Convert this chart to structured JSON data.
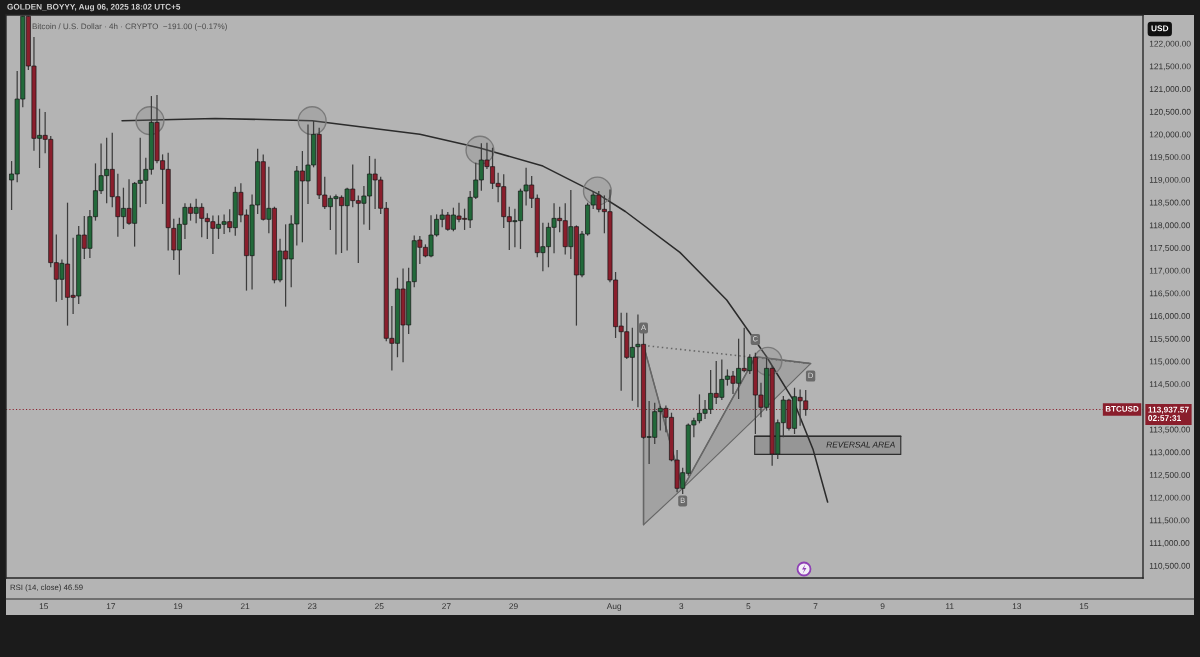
{
  "chart_data": {
    "type": "candlestick",
    "title": "Bitcoin / U.S. Dollar · 4h · CRYPTO  −191.00 (−0.17%)",
    "ylabel": "USD",
    "x": [
      "2025-07-14T01:00",
      "2025-07-14T05:00",
      "2025-07-14T09:00",
      "2025-07-14T13:00",
      "2025-07-14T17:00",
      "2025-07-14T21:00",
      "2025-07-15T01:00",
      "2025-07-15T05:00",
      "2025-07-15T09:00",
      "2025-07-15T13:00",
      "2025-07-15T17:00",
      "2025-07-15T21:00",
      "2025-07-16T01:00",
      "2025-07-16T05:00",
      "2025-07-16T09:00",
      "2025-07-16T13:00",
      "2025-07-16T17:00",
      "2025-07-16T21:00",
      "2025-07-17T01:00",
      "2025-07-17T05:00",
      "2025-07-17T09:00",
      "2025-07-17T13:00",
      "2025-07-17T17:00",
      "2025-07-17T21:00",
      "2025-07-18T01:00",
      "2025-07-18T05:00",
      "2025-07-18T09:00",
      "2025-07-18T13:00",
      "2025-07-18T17:00",
      "2025-07-18T21:00",
      "2025-07-19T01:00",
      "2025-07-19T05:00",
      "2025-07-19T09:00",
      "2025-07-19T13:00",
      "2025-07-19T17:00",
      "2025-07-19T21:00",
      "2025-07-20T01:00",
      "2025-07-20T05:00",
      "2025-07-20T09:00",
      "2025-07-20T13:00",
      "2025-07-20T17:00",
      "2025-07-20T21:00",
      "2025-07-21T01:00",
      "2025-07-21T05:00",
      "2025-07-21T09:00",
      "2025-07-21T13:00",
      "2025-07-21T17:00",
      "2025-07-21T21:00",
      "2025-07-22T01:00",
      "2025-07-22T05:00",
      "2025-07-22T09:00",
      "2025-07-22T13:00",
      "2025-07-22T17:00",
      "2025-07-22T21:00",
      "2025-07-23T01:00",
      "2025-07-23T05:00",
      "2025-07-23T09:00",
      "2025-07-23T13:00",
      "2025-07-23T17:00",
      "2025-07-23T21:00",
      "2025-07-24T01:00",
      "2025-07-24T05:00",
      "2025-07-24T09:00",
      "2025-07-24T13:00",
      "2025-07-24T17:00",
      "2025-07-24T21:00",
      "2025-07-25T01:00",
      "2025-07-25T05:00",
      "2025-07-25T09:00",
      "2025-07-25T13:00",
      "2025-07-25T17:00",
      "2025-07-25T21:00",
      "2025-07-26T01:00",
      "2025-07-26T05:00",
      "2025-07-26T09:00",
      "2025-07-26T13:00",
      "2025-07-26T17:00",
      "2025-07-26T21:00",
      "2025-07-27T01:00",
      "2025-07-27T05:00",
      "2025-07-27T09:00",
      "2025-07-27T13:00",
      "2025-07-27T17:00",
      "2025-07-27T21:00",
      "2025-07-28T01:00",
      "2025-07-28T05:00",
      "2025-07-28T09:00",
      "2025-07-28T13:00",
      "2025-07-28T17:00",
      "2025-07-28T21:00",
      "2025-07-29T01:00",
      "2025-07-29T05:00",
      "2025-07-29T09:00",
      "2025-07-29T13:00",
      "2025-07-29T17:00",
      "2025-07-29T21:00",
      "2025-07-30T01:00",
      "2025-07-30T05:00",
      "2025-07-30T09:00",
      "2025-07-30T13:00",
      "2025-07-30T17:00",
      "2025-07-30T21:00",
      "2025-07-31T01:00",
      "2025-07-31T05:00",
      "2025-07-31T09:00",
      "2025-07-31T13:00",
      "2025-07-31T17:00",
      "2025-07-31T21:00",
      "2025-08-01T01:00",
      "2025-08-01T05:00",
      "2025-08-01T09:00",
      "2025-08-01T13:00",
      "2025-08-01T17:00",
      "2025-08-01T21:00",
      "2025-08-02T01:00",
      "2025-08-02T05:00",
      "2025-08-02T09:00",
      "2025-08-02T13:00",
      "2025-08-02T17:00",
      "2025-08-02T21:00",
      "2025-08-03T01:00",
      "2025-08-03T05:00",
      "2025-08-03T09:00",
      "2025-08-03T13:00",
      "2025-08-03T17:00",
      "2025-08-03T21:00",
      "2025-08-04T01:00",
      "2025-08-04T05:00",
      "2025-08-04T09:00",
      "2025-08-04T13:00",
      "2025-08-04T17:00",
      "2025-08-04T21:00",
      "2025-08-05T01:00",
      "2025-08-05T05:00",
      "2025-08-05T09:00",
      "2025-08-05T13:00",
      "2025-08-05T17:00",
      "2025-08-05T21:00",
      "2025-08-06T01:00",
      "2025-08-06T05:00",
      "2025-08-06T09:00",
      "2025-08-06T13:00",
      "2025-08-06T17:00"
    ],
    "ohlc": [
      [
        118994,
        119397,
        118347,
        119126
      ],
      [
        119126,
        121380,
        118957,
        120777
      ],
      [
        120777,
        122600,
        120609,
        122600
      ],
      [
        122600,
        122600,
        121430,
        121504
      ],
      [
        121504,
        122128,
        119654,
        119911
      ],
      [
        119911,
        120550,
        119272,
        119977
      ],
      [
        119977,
        120476,
        119595,
        119889
      ],
      [
        119889,
        119948,
        117085,
        117173
      ],
      [
        117173,
        117782,
        116328,
        116806
      ],
      [
        116806,
        117231,
        116365,
        117158
      ],
      [
        117143,
        118480,
        115800,
        116409
      ],
      [
        116453,
        117708,
        116057,
        116409
      ],
      [
        116438,
        117966,
        116277,
        117782
      ],
      [
        117782,
        118186,
        117268,
        117488
      ],
      [
        117488,
        118318,
        117290,
        118186
      ],
      [
        118186,
        119346,
        118112,
        118758
      ],
      [
        118758,
        119786,
        118700,
        119089
      ],
      [
        119089,
        119911,
        118494,
        119228
      ],
      [
        119228,
        120022,
        118406,
        118626
      ],
      [
        118626,
        119118,
        117760,
        118186
      ],
      [
        118186,
        118810,
        117929,
        118369
      ],
      [
        118369,
        118994,
        118024,
        118039
      ],
      [
        118039,
        118935,
        117540,
        118920
      ],
      [
        118920,
        119911,
        118406,
        118986
      ],
      [
        118986,
        119471,
        118480,
        119228
      ],
      [
        119228,
        120829,
        119126,
        120263
      ],
      [
        120263,
        120851,
        119375,
        119419
      ],
      [
        119419,
        119544,
        118480,
        119228
      ],
      [
        119228,
        119581,
        117452,
        117943
      ],
      [
        117929,
        118127,
        117246,
        117452
      ],
      [
        117452,
        118149,
        116923,
        118017
      ],
      [
        118017,
        118465,
        117708,
        118391
      ],
      [
        118391,
        118465,
        118112,
        118259
      ],
      [
        118259,
        118568,
        118054,
        118391
      ],
      [
        118391,
        118465,
        117745,
        118149
      ],
      [
        118149,
        118245,
        117708,
        118076
      ],
      [
        118076,
        118200,
        117378,
        117929
      ],
      [
        117929,
        118201,
        117709,
        118017
      ],
      [
        118017,
        118222,
        117819,
        118076
      ],
      [
        118076,
        118333,
        117856,
        117944
      ],
      [
        117944,
        118832,
        117782,
        118722
      ],
      [
        118722,
        118906,
        118076,
        118223
      ],
      [
        118223,
        118333,
        116571,
        117327
      ],
      [
        117327,
        118663,
        116593,
        118443
      ],
      [
        118443,
        119669,
        118260,
        119397
      ],
      [
        119397,
        119544,
        118113,
        118127
      ],
      [
        118127,
        119273,
        117834,
        118370
      ],
      [
        118370,
        118392,
        116732,
        116791
      ],
      [
        116791,
        117687,
        116754,
        117430
      ],
      [
        117430,
        118003,
        116218,
        117254
      ],
      [
        117254,
        118201,
        116644,
        118025
      ],
      [
        118025,
        119287,
        117562,
        119192
      ],
      [
        119192,
        119618,
        117635,
        118972
      ],
      [
        118972,
        120205,
        118480,
        119324
      ],
      [
        119324,
        120279,
        119287,
        119999
      ],
      [
        119999,
        120132,
        118590,
        118663
      ],
      [
        118663,
        119052,
        118370,
        118406
      ],
      [
        118406,
        118641,
        117907,
        118590
      ],
      [
        118583,
        118663,
        117364,
        118627
      ],
      [
        118612,
        118641,
        117400,
        118428
      ],
      [
        118428,
        118810,
        117452,
        118795
      ],
      [
        118795,
        119324,
        118406,
        118539
      ],
      [
        118539,
        118641,
        117180,
        118480
      ],
      [
        118480,
        118847,
        118025,
        118641
      ],
      [
        118641,
        119508,
        117907,
        119126
      ],
      [
        119126,
        119449,
        118370,
        118994
      ],
      [
        118994,
        119052,
        118260,
        118370
      ],
      [
        118370,
        118494,
        115455,
        115506
      ],
      [
        115506,
        116204,
        114809,
        115396
      ],
      [
        115396,
        116828,
        115103,
        116593
      ],
      [
        116593,
        117033,
        114992,
        115800
      ],
      [
        115800,
        117048,
        115616,
        116754
      ],
      [
        116754,
        117760,
        116644,
        117657
      ],
      [
        117672,
        117745,
        117158,
        117511
      ],
      [
        117511,
        117562,
        117305,
        117320
      ],
      [
        117320,
        118201,
        117305,
        117782
      ],
      [
        117782,
        118223,
        117760,
        118127
      ],
      [
        118127,
        118333,
        117966,
        118223
      ],
      [
        118223,
        118274,
        117892,
        117907
      ],
      [
        117907,
        118370,
        117878,
        118223
      ],
      [
        118201,
        118480,
        118076,
        118127
      ],
      [
        118149,
        118348,
        117907,
        118127
      ],
      [
        118113,
        118737,
        117951,
        118612
      ],
      [
        118612,
        119361,
        118590,
        118994
      ],
      [
        118994,
        119787,
        118773,
        119434
      ],
      [
        119434,
        119801,
        119251,
        119288
      ],
      [
        119288,
        119691,
        118810,
        118920
      ],
      [
        118920,
        119141,
        118517,
        118847
      ],
      [
        118847,
        119104,
        117951,
        118186
      ],
      [
        118186,
        118392,
        117467,
        118076
      ],
      [
        118076,
        118348,
        117525,
        118098
      ],
      [
        118098,
        118788,
        117489,
        118751
      ],
      [
        118751,
        119251,
        118443,
        118884
      ],
      [
        118884,
        119067,
        118392,
        118590
      ],
      [
        118590,
        118663,
        117305,
        117393
      ],
      [
        117393,
        118039,
        116997,
        117525
      ],
      [
        117525,
        118039,
        117085,
        117951
      ],
      [
        117951,
        118465,
        117393,
        118149
      ],
      [
        118149,
        118392,
        117856,
        118098
      ],
      [
        118098,
        118465,
        117364,
        117525
      ],
      [
        117525,
        118759,
        117268,
        117966
      ],
      [
        117966,
        117980,
        115800,
        116901
      ],
      [
        116901,
        117856,
        116865,
        117804
      ],
      [
        117804,
        118480,
        117782,
        118443
      ],
      [
        118443,
        118737,
        118370,
        118663
      ],
      [
        118663,
        118737,
        118296,
        118348
      ],
      [
        118348,
        118641,
        117834,
        118296
      ],
      [
        118296,
        118773,
        116754,
        116791
      ],
      [
        116791,
        116953,
        115528,
        115763
      ],
      [
        115777,
        116056,
        114368,
        115652
      ],
      [
        115652,
        116056,
        115065,
        115087
      ],
      [
        115087,
        115726,
        114147,
        115307
      ],
      [
        115322,
        116020,
        114000,
        115374
      ],
      [
        115374,
        115616,
        113303,
        113325
      ],
      [
        113325,
        114111,
        112752,
        113340
      ],
      [
        113325,
        114074,
        113193,
        113891
      ],
      [
        113891,
        114000,
        113487,
        113964
      ],
      [
        113964,
        114015,
        113450,
        113766
      ],
      [
        113766,
        113854,
        112811,
        112826
      ],
      [
        112826,
        113032,
        112129,
        112202
      ],
      [
        112202,
        112642,
        112092,
        112547
      ],
      [
        112532,
        113619,
        112495,
        113597
      ],
      [
        113597,
        113744,
        113340,
        113692
      ],
      [
        113692,
        114258,
        113648,
        113854
      ],
      [
        113854,
        114133,
        113744,
        113942
      ],
      [
        113942,
        114793,
        113854,
        114294
      ],
      [
        114294,
        114992,
        114074,
        114206
      ],
      [
        114206,
        115028,
        114162,
        114602
      ],
      [
        114602,
        114808,
        114478,
        114676
      ],
      [
        114676,
        114771,
        114294,
        114515
      ],
      [
        114515,
        115484,
        114184,
        114845
      ],
      [
        114845,
        115726,
        114771,
        114794
      ],
      [
        114794,
        115139,
        114735,
        115087
      ],
      [
        115087,
        115175,
        113413,
        114257
      ],
      [
        114257,
        114515,
        113780,
        113986
      ],
      [
        113986,
        115065,
        113927,
        114845
      ],
      [
        114845,
        114882,
        112716,
        112958
      ],
      [
        112958,
        113707,
        112863,
        113648
      ],
      [
        113648,
        114221,
        113340,
        114147
      ],
      [
        114147,
        114162,
        113487,
        113523
      ],
      [
        113523,
        114404,
        113413,
        114221
      ],
      [
        114206,
        114368,
        113597,
        114129
      ],
      [
        114129,
        114353,
        113817,
        113937.57
      ]
    ],
    "colors": [
      "#22693a",
      "#22693a",
      "#22693a",
      "#8a1e2c",
      "#8a1e2c",
      "#22693a",
      "#8a1e2c",
      "#8a1e2c",
      "#8a1e2c",
      "#22693a",
      "#8a1e2c",
      "#8a1e2c",
      "#22693a",
      "#8a1e2c",
      "#22693a",
      "#22693a",
      "#22693a",
      "#22693a",
      "#8a1e2c",
      "#8a1e2c",
      "#22693a",
      "#8a1e2c",
      "#22693a",
      "#22693a",
      "#22693a",
      "#22693a",
      "#8a1e2c",
      "#8a1e2c",
      "#8a1e2c",
      "#8a1e2c",
      "#22693a",
      "#22693a",
      "#8a1e2c",
      "#22693a",
      "#8a1e2c",
      "#8a1e2c",
      "#8a1e2c",
      "#22693a",
      "#22693a",
      "#8a1e2c",
      "#22693a",
      "#8a1e2c",
      "#8a1e2c",
      "#22693a",
      "#22693a",
      "#8a1e2c",
      "#22693a",
      "#8a1e2c",
      "#22693a",
      "#8a1e2c",
      "#22693a",
      "#22693a",
      "#8a1e2c",
      "#22693a",
      "#22693a",
      "#8a1e2c",
      "#8a1e2c",
      "#22693a",
      "#22693a",
      "#8a1e2c",
      "#22693a",
      "#8a1e2c",
      "#8a1e2c",
      "#22693a",
      "#22693a",
      "#8a1e2c",
      "#8a1e2c",
      "#8a1e2c",
      "#8a1e2c",
      "#22693a",
      "#8a1e2c",
      "#22693a",
      "#22693a",
      "#8a1e2c",
      "#8a1e2c",
      "#22693a",
      "#22693a",
      "#22693a",
      "#8a1e2c",
      "#22693a",
      "#8a1e2c",
      "#8a1e2c",
      "#22693a",
      "#22693a",
      "#22693a",
      "#8a1e2c",
      "#8a1e2c",
      "#8a1e2c",
      "#8a1e2c",
      "#8a1e2c",
      "#22693a",
      "#22693a",
      "#22693a",
      "#8a1e2c",
      "#8a1e2c",
      "#22693a",
      "#22693a",
      "#22693a",
      "#8a1e2c",
      "#8a1e2c",
      "#22693a",
      "#8a1e2c",
      "#22693a",
      "#22693a",
      "#22693a",
      "#8a1e2c",
      "#8a1e2c",
      "#8a1e2c",
      "#8a1e2c",
      "#8a1e2c",
      "#8a1e2c",
      "#22693a",
      "#22693a",
      "#8a1e2c",
      "#22693a",
      "#22693a",
      "#22693a",
      "#8a1e2c",
      "#8a1e2c",
      "#8a1e2c",
      "#22693a",
      "#22693a",
      "#22693a",
      "#22693a",
      "#22693a",
      "#22693a",
      "#8a1e2c",
      "#22693a",
      "#22693a",
      "#8a1e2c",
      "#22693a",
      "#8a1e2c",
      "#22693a",
      "#8a1e2c",
      "#8a1e2c",
      "#22693a",
      "#8a1e2c",
      "#22693a",
      "#22693a",
      "#8a1e2c",
      "#22693a",
      "#8a1e2c",
      "#8a1e2c"
    ],
    "series": [
      {
        "type": "line",
        "x": [
          "2025-07-17T08:00",
          "2025-07-20T02:30",
          "2025-07-23T00:00",
          "2025-07-26T05:00",
          "2025-07-28T00:00",
          "2025-07-29T21:00",
          "2025-07-31T11:30",
          "2025-08-01T08:00",
          "2025-08-02T23:00",
          "2025-08-04T08:30",
          "2025-08-05T13:00",
          "2025-08-06T08:00",
          "2025-08-06T22:20",
          "2025-08-07T08:40"
        ],
        "values": [
          120300,
          120350,
          120300,
          120000,
          119700,
          119300,
          118700,
          118300,
          117400,
          116350,
          115100,
          114150,
          113050,
          111900
        ],
        "color": "#2b2b2b"
      },
      {
        "type": "scatter",
        "x": [
          "2025-07-18T04:00",
          "2025-07-23T00:00",
          "2025-07-28T00:00",
          "2025-07-31T12:00",
          "2025-08-05T14:00"
        ],
        "values": [
          120300,
          120300,
          119650,
          118750,
          115000
        ],
        "color": "#7a7a7a",
        "marker": "circle"
      },
      {
        "type": "line",
        "x": [
          "2025-08-01T21:00",
          "2025-08-01T21:00",
          "2025-08-03T01:00"
        ],
        "values": [
          111400,
          115350,
          112200
        ],
        "lower": [
          111400,
          111400,
          112200
        ],
        "upper": [
          115350,
          115350,
          112200
        ],
        "color": "#666666"
      },
      {
        "type": "line",
        "x": [
          "2025-08-03T01:00",
          "2025-08-05T05:00",
          "2025-08-06T20:30"
        ],
        "values": [
          112200,
          115100,
          114950
        ],
        "lower": [
          112200,
          113750,
          114950
        ],
        "upper": [
          112200,
          115100,
          114950
        ],
        "color": "#666666"
      },
      {
        "type": "line",
        "x": [
          "2025-08-01T21:00",
          "2025-08-06T20:30"
        ],
        "values": [
          115350,
          114950
        ],
        "color": "#666666",
        "line_style": "dotted"
      },
      {
        "type": "line",
        "name": "REVERSAL AREA",
        "x": [
          "2025-08-05T04:30",
          "2025-08-09T13:00"
        ],
        "values": [
          113350,
          113350
        ],
        "lower": [
          112950,
          112950
        ],
        "upper": [
          113350,
          113350
        ],
        "color": "#2e2e2e"
      }
    ],
    "xlim": [
      "2025-07-13T21:00",
      "2025-08-16T18:15"
    ],
    "xticks": [
      {
        "value": "2025-07-15",
        "label": "15"
      },
      {
        "value": "2025-07-17",
        "label": "17"
      },
      {
        "value": "2025-07-19",
        "label": "19"
      },
      {
        "value": "2025-07-21",
        "label": "21"
      },
      {
        "value": "2025-07-23",
        "label": "23"
      },
      {
        "value": "2025-07-25",
        "label": "25"
      },
      {
        "value": "2025-07-27",
        "label": "27"
      },
      {
        "value": "2025-07-29",
        "label": "29"
      },
      {
        "value": "2025-08-01",
        "label": "Aug"
      },
      {
        "value": "2025-08-03",
        "label": "3"
      },
      {
        "value": "2025-08-05",
        "label": "5"
      },
      {
        "value": "2025-08-07",
        "label": "7"
      },
      {
        "value": "2025-08-09",
        "label": "9"
      },
      {
        "value": "2025-08-11",
        "label": "11"
      },
      {
        "value": "2025-08-13",
        "label": "13"
      },
      {
        "value": "2025-08-15",
        "label": "15"
      }
    ],
    "ylim": [
      110227,
      122628
    ],
    "yticks": [
      {
        "value": 110500,
        "label": "110,500.00"
      },
      {
        "value": 111000,
        "label": "111,000.00"
      },
      {
        "value": 111500,
        "label": "111,500.00"
      },
      {
        "value": 112000,
        "label": "112,000.00"
      },
      {
        "value": 112500,
        "label": "112,500.00"
      },
      {
        "value": 113000,
        "label": "113,000.00"
      },
      {
        "value": 113500,
        "label": "113,500.00"
      },
      {
        "value": 114500,
        "label": "114,500.00"
      },
      {
        "value": 115000,
        "label": "115,000.00"
      },
      {
        "value": 115500,
        "label": "115,500.00"
      },
      {
        "value": 116000,
        "label": "116,000.00"
      },
      {
        "value": 116500,
        "label": "116,500.00"
      },
      {
        "value": 117000,
        "label": "117,000.00"
      },
      {
        "value": 117500,
        "label": "117,500.00"
      },
      {
        "value": 118000,
        "label": "118,000.00"
      },
      {
        "value": 118500,
        "label": "118,500.00"
      },
      {
        "value": 119000,
        "label": "119,000.00"
      },
      {
        "value": 119500,
        "label": "119,500.00"
      },
      {
        "value": 120000,
        "label": "120,000.00"
      },
      {
        "value": 120500,
        "label": "120,500.00"
      },
      {
        "value": 121000,
        "label": "121,000.00"
      },
      {
        "value": 121500,
        "label": "121,500.00"
      },
      {
        "value": 122000,
        "label": "122,000.00"
      }
    ],
    "ref_lines": [
      {
        "axis": "y",
        "value": 113937.57,
        "label": "BTCUSD",
        "color": "#8a1e2c",
        "line_style": "dotted"
      }
    ],
    "annotations": [
      "GOLDEN_BOYYY, Aug 06, 2025 18:02 UTC+5",
      "RSI (14, close) 46.59",
      "113,937.57",
      "02:57:31",
      {
        "text": "A",
        "x": "2025-08-01T21:00",
        "y": 115350
      },
      {
        "text": "B",
        "x": "2025-08-03T01:00",
        "y": 112200
      },
      {
        "text": "C",
        "x": "2025-08-05T05:00",
        "y": 115100
      },
      {
        "text": "D",
        "x": "2025-08-06T20:30",
        "y": 114950
      }
    ]
  }
}
